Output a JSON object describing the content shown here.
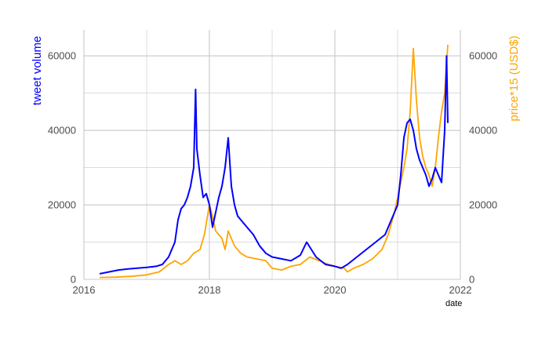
{
  "chart_data": {
    "type": "line",
    "xlabel": "date",
    "ylabel": "tweet volume",
    "y2label": "price*15 (USD$)",
    "xlim": [
      2016.0,
      2022.0
    ],
    "ylim": [
      0,
      67000
    ],
    "x_ticks": [
      2016,
      2018,
      2020,
      2022
    ],
    "x_tick_labels": [
      "2016",
      "2018",
      "2020",
      "2022"
    ],
    "y_ticks": [
      0,
      20000,
      40000,
      60000
    ],
    "y_tick_labels": [
      "0",
      "20000",
      "40000",
      "60000"
    ],
    "y2_ticks": [
      0,
      20000,
      40000,
      60000
    ],
    "y2_tick_labels": [
      "0",
      "20000",
      "40000",
      "60000"
    ],
    "grid": true,
    "colors": {
      "tweet_volume": "#0000ff",
      "price": "#ffa500",
      "grid": "#c8c8c8"
    },
    "series": [
      {
        "key": "tweet_volume",
        "x": [
          2016.25,
          2016.4,
          2016.55,
          2016.7,
          2016.85,
          2017.0,
          2017.15,
          2017.25,
          2017.35,
          2017.45,
          2017.5,
          2017.55,
          2017.6,
          2017.65,
          2017.7,
          2017.75,
          2017.78,
          2017.8,
          2017.85,
          2017.9,
          2017.95,
          2018.0,
          2018.05,
          2018.1,
          2018.15,
          2018.2,
          2018.25,
          2018.3,
          2018.35,
          2018.4,
          2018.45,
          2018.5,
          2018.6,
          2018.7,
          2018.8,
          2018.9,
          2019.0,
          2019.15,
          2019.3,
          2019.45,
          2019.55,
          2019.7,
          2019.85,
          2020.0,
          2020.1,
          2020.2,
          2020.35,
          2020.5,
          2020.65,
          2020.8,
          2020.9,
          2021.0,
          2021.05,
          2021.1,
          2021.15,
          2021.2,
          2021.25,
          2021.3,
          2021.35,
          2021.4,
          2021.45,
          2021.5,
          2021.55,
          2021.6,
          2021.65,
          2021.7,
          2021.75,
          2021.78,
          2021.8
        ],
        "y": [
          1500,
          2000,
          2500,
          2800,
          3000,
          3200,
          3500,
          4000,
          6000,
          10000,
          16000,
          19000,
          20000,
          22000,
          25000,
          30000,
          51000,
          35000,
          28000,
          22000,
          23000,
          20000,
          14000,
          18000,
          22000,
          25000,
          30000,
          38000,
          25000,
          20000,
          17000,
          16000,
          14000,
          12000,
          9000,
          7000,
          6000,
          5500,
          5000,
          6500,
          10000,
          6000,
          4000,
          3500,
          3000,
          4000,
          6000,
          8000,
          10000,
          12000,
          16000,
          20000,
          28000,
          38000,
          42000,
          43000,
          40000,
          35000,
          32000,
          30000,
          28000,
          25000,
          27000,
          30000,
          28000,
          26000,
          40000,
          60000,
          42000
        ]
      },
      {
        "key": "price",
        "x": [
          2016.25,
          2016.5,
          2016.75,
          2017.0,
          2017.2,
          2017.35,
          2017.45,
          2017.55,
          2017.65,
          2017.75,
          2017.85,
          2017.92,
          2017.96,
          2018.0,
          2018.05,
          2018.1,
          2018.15,
          2018.2,
          2018.25,
          2018.3,
          2018.35,
          2018.4,
          2018.5,
          2018.6,
          2018.75,
          2018.9,
          2019.0,
          2019.15,
          2019.3,
          2019.45,
          2019.6,
          2019.75,
          2019.9,
          2020.0,
          2020.15,
          2020.2,
          2020.3,
          2020.45,
          2020.6,
          2020.75,
          2020.85,
          2020.95,
          2021.0,
          2021.05,
          2021.1,
          2021.15,
          2021.2,
          2021.25,
          2021.3,
          2021.35,
          2021.4,
          2021.45,
          2021.5,
          2021.55,
          2021.6,
          2021.65,
          2021.7,
          2021.75,
          2021.8
        ],
        "y": [
          500,
          600,
          800,
          1200,
          2000,
          4000,
          5000,
          4000,
          5000,
          7000,
          8000,
          12000,
          16000,
          20000,
          17000,
          13000,
          12000,
          11000,
          8000,
          13000,
          11000,
          9000,
          7000,
          6000,
          5500,
          5000,
          3000,
          2500,
          3500,
          4000,
          6000,
          5000,
          4000,
          3500,
          3000,
          2000,
          3000,
          4000,
          5500,
          8000,
          12000,
          18000,
          22000,
          26000,
          30000,
          35000,
          45000,
          62000,
          48000,
          38000,
          33000,
          30000,
          28000,
          25000,
          30000,
          38000,
          45000,
          50000,
          63000
        ]
      }
    ]
  }
}
